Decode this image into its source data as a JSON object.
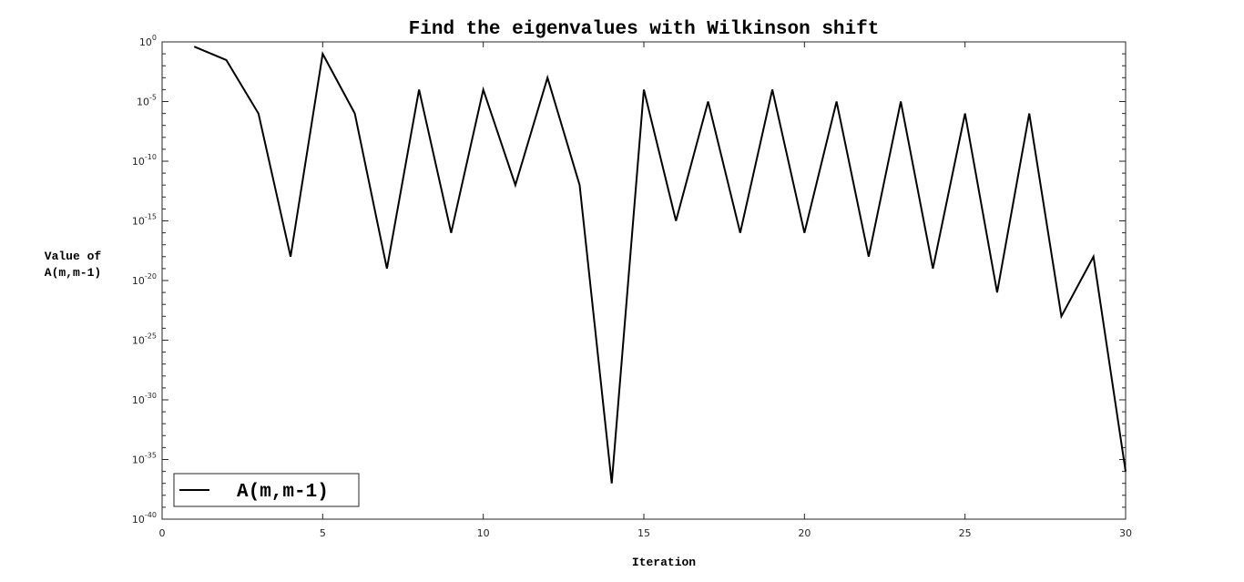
{
  "chart_data": {
    "type": "line",
    "title": "Find the eigenvalues with Wilkinson shift",
    "xlabel": "Iteration",
    "ylabel": [
      "Value of",
      "A(m,m-1)"
    ],
    "xlim": [
      0,
      30
    ],
    "ylim": [
      1e-40,
      1
    ],
    "yscale": "log",
    "grid": false,
    "legend_position": "bottom-left",
    "xticks": [
      0,
      5,
      10,
      15,
      20,
      25,
      30
    ],
    "yticks_exponents": [
      -40,
      -35,
      -30,
      -25,
      -20,
      -15,
      -10,
      -5,
      0
    ],
    "series": [
      {
        "name": "A(m,m-1)",
        "color": "#000000",
        "x": [
          1,
          2,
          3,
          4,
          5,
          6,
          7,
          8,
          9,
          10,
          11,
          12,
          13,
          14,
          15,
          16,
          17,
          18,
          19,
          20,
          21,
          22,
          23,
          24,
          25,
          26,
          27,
          28,
          29,
          30
        ],
        "y": [
          0.4,
          0.03,
          1e-06,
          1e-18,
          0.1,
          1e-06,
          1e-19,
          0.0001,
          1e-16,
          0.0001,
          1e-12,
          0.001,
          1e-12,
          1e-37,
          0.0001,
          1e-15,
          1e-05,
          1e-16,
          0.0001,
          1e-16,
          1e-05,
          1e-18,
          1e-05,
          1e-19,
          1e-06,
          1e-21,
          1e-06,
          1e-23,
          1e-18,
          1e-36
        ]
      }
    ]
  }
}
